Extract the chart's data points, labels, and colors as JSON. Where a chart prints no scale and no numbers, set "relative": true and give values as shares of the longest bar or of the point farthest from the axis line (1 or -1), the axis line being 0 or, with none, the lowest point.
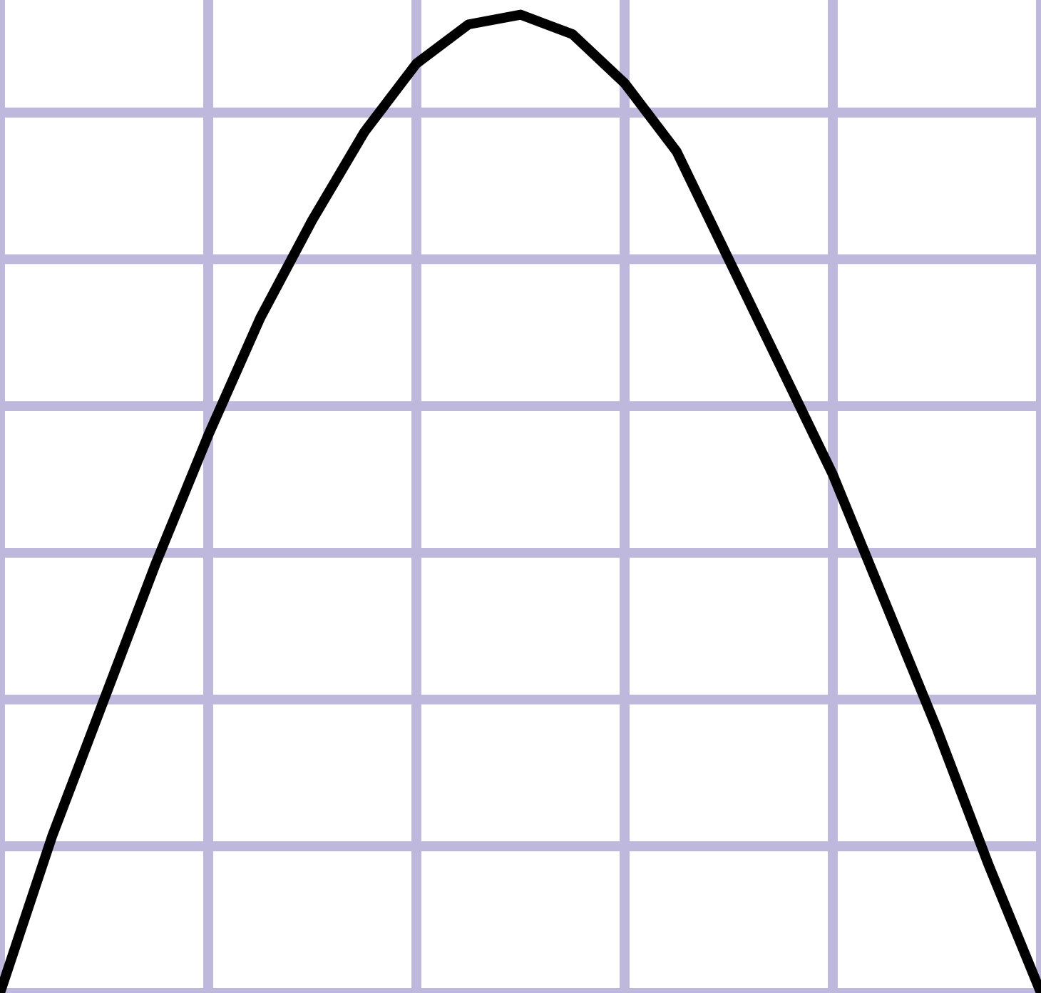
{
  "chart_data": {
    "type": "line",
    "relative": true,
    "grid": true,
    "categories": [
      null,
      null,
      null,
      null,
      null,
      null,
      null,
      null,
      null,
      null,
      null,
      null,
      null,
      null,
      null,
      null,
      null,
      null,
      null,
      null,
      null
    ],
    "series": [
      {
        "color": "#000000",
        "values": [
          0,
          0.16,
          0.3,
          0.44,
          0.57,
          0.69,
          0.79,
          0.88,
          0.95,
          0.99,
          1.0,
          0.98,
          0.93,
          0.86,
          0.75,
          0.64,
          0.53,
          0.4,
          0.27,
          0.13,
          0
        ]
      }
    ]
  }
}
